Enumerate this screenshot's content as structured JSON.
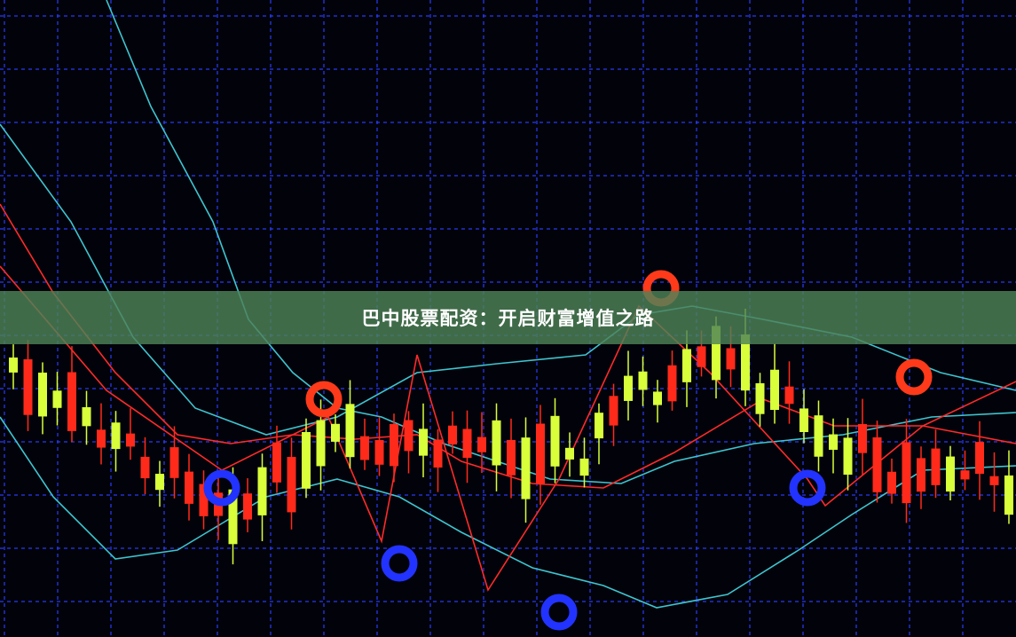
{
  "banner": {
    "title": "巴中股票配资：开启财富增值之路"
  },
  "colors": {
    "grid": "#2a3cff",
    "up": "#d8ff3a",
    "down": "#ff2a1a",
    "ma_red": "#ff2a2a",
    "band": "#3fc4d0",
    "banner": "#4e8258"
  }
}
